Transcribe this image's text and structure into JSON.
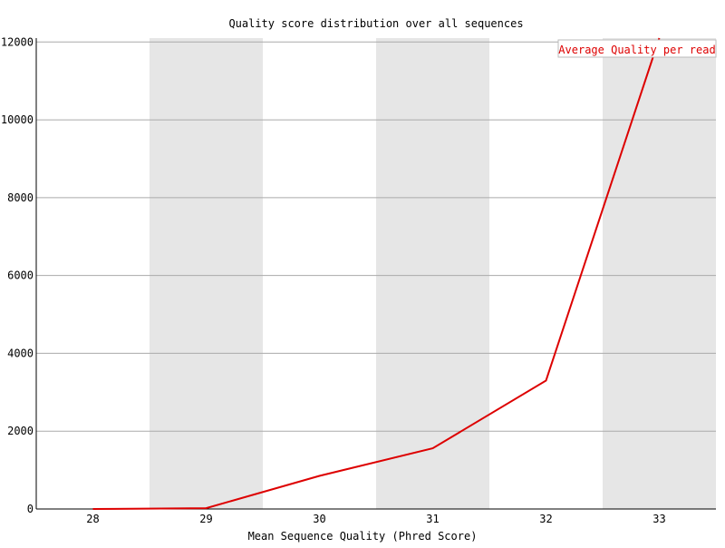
{
  "chart_data": {
    "type": "line",
    "title": "Quality score distribution over all sequences",
    "xlabel": "Mean Sequence Quality (Phred Score)",
    "ylabel": "",
    "categories": [
      "28",
      "29",
      "30",
      "31",
      "32",
      "33"
    ],
    "series": [
      {
        "name": "Average Quality per read",
        "color": "#dd0000",
        "values": [
          0,
          20,
          850,
          1560,
          3300,
          12100
        ]
      }
    ],
    "ylim": [
      0,
      12100
    ],
    "yticks": [
      "0",
      "2000",
      "4000",
      "6000",
      "8000",
      "10000",
      "12000"
    ],
    "ytick_values": [
      0,
      2000,
      4000,
      6000,
      8000,
      10000,
      12000
    ],
    "grid": true,
    "alternating_bands": true,
    "band_color": "#e6e6e6",
    "legend_position": "top-right"
  }
}
